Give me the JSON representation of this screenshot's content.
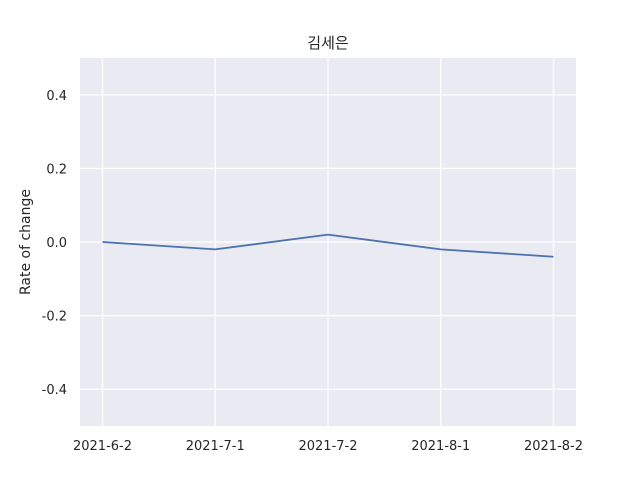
{
  "chart_data": {
    "type": "line",
    "title": "김세은",
    "xlabel": "",
    "ylabel": "Rate of change",
    "categories": [
      "2021-6-2",
      "2021-7-1",
      "2021-7-2",
      "2021-8-1",
      "2021-8-2"
    ],
    "series": [
      {
        "values": [
          0.0,
          -0.02,
          0.02,
          -0.02,
          -0.04
        ]
      }
    ],
    "ylim": [
      -0.5,
      0.5
    ],
    "yticks": [
      -0.4,
      -0.2,
      0.0,
      0.2,
      0.4
    ],
    "ytick_labels": [
      "-0.4",
      "-0.2",
      "0.0",
      "0.2",
      "0.4"
    ],
    "grid": true,
    "colors": {
      "background": "#eaeaf2",
      "grid": "#ffffff",
      "line": "#4c72b0"
    }
  }
}
